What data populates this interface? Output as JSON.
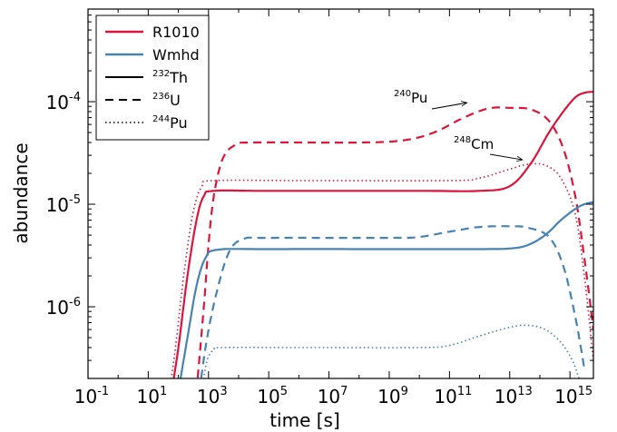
{
  "chart_data": {
    "type": "line",
    "xlabel": "time [s]",
    "ylabel": "abundance",
    "x_scale": "log",
    "y_scale": "log",
    "xlim": [
      0.1,
      6000000000000000.0
    ],
    "ylim": [
      2e-07,
      0.0008
    ],
    "x_ticks": [
      {
        "base": "10",
        "exp": "-1",
        "value": 0.1
      },
      {
        "base": "10",
        "exp": "1",
        "value": 10
      },
      {
        "base": "10",
        "exp": "3",
        "value": 1000
      },
      {
        "base": "10",
        "exp": "5",
        "value": 100000
      },
      {
        "base": "10",
        "exp": "7",
        "value": 10000000
      },
      {
        "base": "10",
        "exp": "9",
        "value": 1000000000
      },
      {
        "base": "10",
        "exp": "11",
        "value": 100000000000
      },
      {
        "base": "10",
        "exp": "13",
        "value": 10000000000000
      },
      {
        "base": "10",
        "exp": "15",
        "value": 1000000000000000
      }
    ],
    "y_ticks": [
      {
        "base": "10",
        "exp": "-6",
        "value": 1e-06
      },
      {
        "base": "10",
        "exp": "-5",
        "value": 1e-05
      },
      {
        "base": "10",
        "exp": "-4",
        "value": 0.0001
      }
    ],
    "legend": {
      "placement": "top-left",
      "models": [
        {
          "label": "R1010",
          "color": "#dc143c"
        },
        {
          "label": "Wmhd",
          "color": "#4682b4"
        }
      ],
      "isotopes": [
        {
          "mass": "232",
          "element": "Th",
          "dash": "solid"
        },
        {
          "mass": "236",
          "element": "U",
          "dash": "dashed"
        },
        {
          "mass": "244",
          "element": "Pu",
          "dash": "dotted"
        }
      ]
    },
    "annotations": [
      {
        "mass": "240",
        "element": "Pu",
        "points_to": [
          500000000000.0,
          9e-05
        ]
      },
      {
        "mass": "248",
        "element": "Cm",
        "points_to": [
          35000000000000.0,
          2.5e-05
        ]
      }
    ],
    "series": [
      {
        "model": "R1010",
        "isotope": "232Th",
        "color": "#dc143c",
        "dash": "solid",
        "points": [
          [
            60,
            1.5e-07
          ],
          [
            100,
            4e-07
          ],
          [
            200,
            2e-06
          ],
          [
            400,
            7e-06
          ],
          [
            700,
            1.2e-05
          ],
          [
            1500,
            1.35e-05
          ],
          [
            100000.0,
            1.35e-05
          ],
          [
            10000000000.0,
            1.35e-05
          ],
          [
            1000000000000.0,
            1.35e-05
          ],
          [
            10000000000000.0,
            1.5e-05
          ],
          [
            50000000000000.0,
            2.5e-05
          ],
          [
            200000000000000.0,
            5e-05
          ],
          [
            600000000000000.0,
            8e-05
          ],
          [
            1500000000000000.0,
            0.00011
          ],
          [
            3000000000000000.0,
            0.000122
          ],
          [
            6000000000000000.0,
            0.000125
          ]
        ]
      },
      {
        "model": "R1010",
        "isotope": "236U",
        "color": "#dc143c",
        "dash": "dashed",
        "points": [
          [
            400,
            1.5e-07
          ],
          [
            700,
            1e-06
          ],
          [
            1000,
            4e-06
          ],
          [
            1500,
            1.2e-05
          ],
          [
            3000,
            2.8e-05
          ],
          [
            8000,
            3.8e-05
          ],
          [
            30000.0,
            4e-05
          ],
          [
            100000000.0,
            4e-05
          ],
          [
            3000000000.0,
            4.2e-05
          ],
          [
            30000000000.0,
            5e-05
          ],
          [
            300000000000.0,
            7e-05
          ],
          [
            2000000000000.0,
            8.6e-05
          ],
          [
            10000000000000.0,
            8.7e-05
          ],
          [
            50000000000000.0,
            8.4e-05
          ],
          [
            200000000000000.0,
            6.5e-05
          ],
          [
            600000000000000.0,
            3.5e-05
          ],
          [
            1500000000000000.0,
            1.2e-05
          ],
          [
            3000000000000000.0,
            3e-06
          ],
          [
            6000000000000000.0,
            6e-07
          ]
        ]
      },
      {
        "model": "R1010",
        "isotope": "244Pu",
        "color": "#dc143c",
        "dash": "dotted",
        "points": [
          [
            50,
            1.5e-07
          ],
          [
            80,
            4e-07
          ],
          [
            150,
            2e-06
          ],
          [
            300,
            8e-06
          ],
          [
            600,
            1.5e-05
          ],
          [
            1500,
            1.7e-05
          ],
          [
            1000000.0,
            1.7e-05
          ],
          [
            100000000000.0,
            1.7e-05
          ],
          [
            1000000000000.0,
            1.8e-05
          ],
          [
            10000000000000.0,
            2.2e-05
          ],
          [
            40000000000000.0,
            2.45e-05
          ],
          [
            150000000000000.0,
            2.4e-05
          ],
          [
            500000000000000.0,
            1.8e-05
          ],
          [
            1500000000000000.0,
            8e-06
          ],
          [
            3000000000000000.0,
            2e-06
          ],
          [
            6000000000000000.0,
            3e-07
          ]
        ]
      },
      {
        "model": "Wmhd",
        "isotope": "232Th",
        "color": "#4682b4",
        "dash": "solid",
        "points": [
          [
            100,
            1.5e-07
          ],
          [
            200,
            5e-07
          ],
          [
            400,
            1.6e-06
          ],
          [
            800,
            3e-06
          ],
          [
            2000,
            3.6e-06
          ],
          [
            100000.0,
            3.65e-06
          ],
          [
            10000000000.0,
            3.65e-06
          ],
          [
            1000000000000.0,
            3.65e-06
          ],
          [
            10000000000000.0,
            3.7e-06
          ],
          [
            40000000000000.0,
            4e-06
          ],
          [
            150000000000000.0,
            5e-06
          ],
          [
            500000000000000.0,
            7e-06
          ],
          [
            1500000000000000.0,
            9e-06
          ],
          [
            3000000000000000.0,
            1e-05
          ],
          [
            6000000000000000.0,
            1.05e-05
          ]
        ]
      },
      {
        "model": "Wmhd",
        "isotope": "236U",
        "color": "#4682b4",
        "dash": "dashed",
        "points": [
          [
            500,
            1.5e-07
          ],
          [
            900,
            5e-07
          ],
          [
            2000,
            1.5e-06
          ],
          [
            5000,
            3.5e-06
          ],
          [
            15000.0,
            4.6e-06
          ],
          [
            100000.0,
            4.7e-06
          ],
          [
            1000000000.0,
            4.7e-06
          ],
          [
            10000000000.0,
            4.8e-06
          ],
          [
            100000000000.0,
            5.4e-06
          ],
          [
            1000000000000.0,
            6e-06
          ],
          [
            10000000000000.0,
            6.1e-06
          ],
          [
            40000000000000.0,
            5.9e-06
          ],
          [
            200000000000000.0,
            4.8e-06
          ],
          [
            600000000000000.0,
            2.5e-06
          ],
          [
            1500000000000000.0,
            8e-07
          ],
          [
            3000000000000000.0,
            2.5e-07
          ]
        ]
      },
      {
        "model": "Wmhd",
        "isotope": "244Pu",
        "color": "#4682b4",
        "dash": "dotted",
        "points": [
          [
            600,
            1.5e-07
          ],
          [
            900,
            3e-07
          ],
          [
            1500,
            3.8e-07
          ],
          [
            3000,
            4e-07
          ],
          [
            1000000.0,
            4e-07
          ],
          [
            10000000000.0,
            4e-07
          ],
          [
            100000000000.0,
            4.2e-07
          ],
          [
            1000000000000.0,
            5.2e-07
          ],
          [
            10000000000000.0,
            6.3e-07
          ],
          [
            40000000000000.0,
            6.6e-07
          ],
          [
            150000000000000.0,
            6e-07
          ],
          [
            500000000000000.0,
            4.5e-07
          ],
          [
            1200000000000000.0,
            3e-07
          ],
          [
            2000000000000000.0,
            2e-07
          ]
        ]
      }
    ]
  }
}
